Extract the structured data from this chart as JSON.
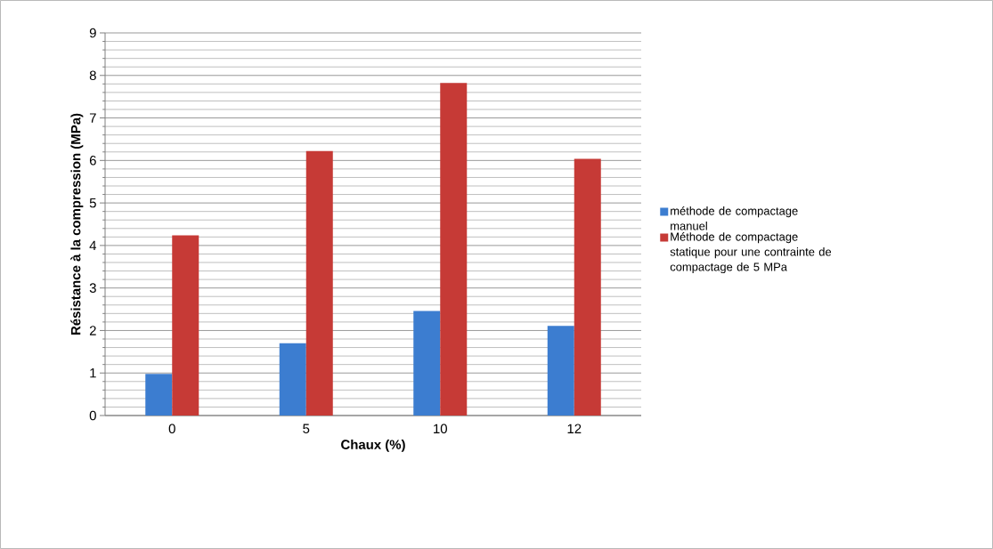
{
  "chart_data": {
    "type": "bar",
    "xlabel": "Chaux (%)",
    "ylabel": "Résistance à la compression (MPa)",
    "categories": [
      "0",
      "5",
      "10",
      "12"
    ],
    "series": [
      {
        "name": "méthode de compactage manuel",
        "color": "#3c7dd0",
        "values": [
          0.98,
          1.7,
          2.46,
          2.11
        ]
      },
      {
        "name": "Méthode de compactage statique pour une contrainte de compactage de 5 MPa",
        "color": "#c63a36",
        "values": [
          4.24,
          6.22,
          7.82,
          6.04
        ]
      }
    ],
    "ylim": [
      0,
      9
    ],
    "yticks": [
      0,
      1,
      2,
      3,
      4,
      5,
      6,
      7,
      8,
      9
    ],
    "grid": "y",
    "legend": "right"
  }
}
